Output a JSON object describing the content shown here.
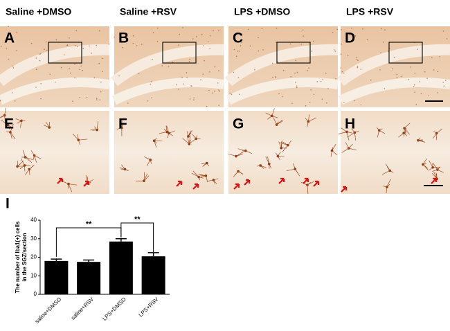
{
  "headers": [
    "Saline +DMSO",
    "Saline +RSV",
    "LPS +DMSO",
    "LPS +RSV"
  ],
  "panel_labels": [
    "A",
    "B",
    "C",
    "D",
    "E",
    "F",
    "G",
    "H",
    "I"
  ],
  "chart_data": {
    "type": "bar",
    "ylabel": [
      "The number of Iba1(+) cells",
      "in the SGZ/section"
    ],
    "categories": [
      "saline+DMSO",
      "saline+RSV",
      "LPS+DMSO",
      "LPS+RSV"
    ],
    "values": [
      18,
      17.5,
      28.5,
      20.5
    ],
    "errors": [
      1,
      1,
      1.5,
      2
    ],
    "color": "#000000",
    "ylim": [
      0,
      40
    ],
    "yticks": [
      0,
      10,
      20,
      30,
      40
    ],
    "annotations": [
      "**",
      "**"
    ]
  }
}
